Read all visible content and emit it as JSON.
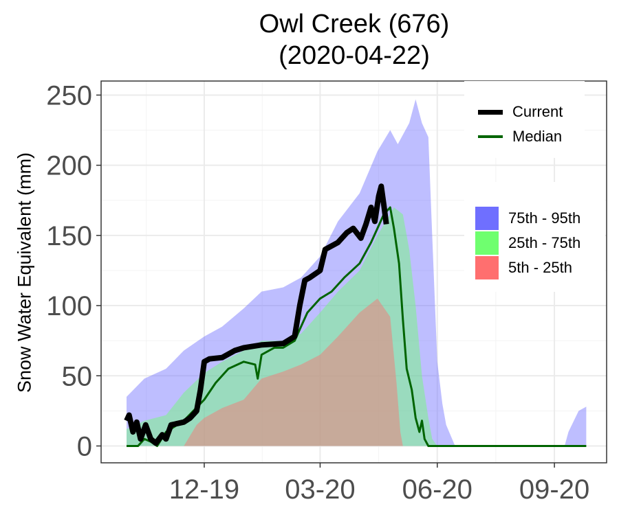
{
  "title_line1": "Owl Creek (676)",
  "title_line2": "(2020-04-22)",
  "chart_data": {
    "type": "area",
    "title": "Owl Creek (676) (2020-04-22)",
    "xlabel": "",
    "ylabel": "Snow Water Equivalent (mm)",
    "x_range": [
      "2019-10-01",
      "2020-09-30"
    ],
    "ylim": [
      -12,
      260
    ],
    "y_ticks": [
      0,
      50,
      100,
      150,
      200,
      250
    ],
    "x_ticks": [
      {
        "label": "12-19",
        "date": "2019-12-01"
      },
      {
        "label": "03-20",
        "date": "2020-03-01"
      },
      {
        "label": "06-20",
        "date": "2020-06-01"
      },
      {
        "label": "09-20",
        "date": "2020-09-01"
      }
    ],
    "grid": true,
    "legend_position": "right",
    "bands": [
      {
        "name": "75th - 95th",
        "color": "#6f6fff",
        "points": [
          [
            "2019-10-01",
            35
          ],
          [
            "2019-10-15",
            48
          ],
          [
            "2019-11-01",
            55
          ],
          [
            "2019-11-15",
            68
          ],
          [
            "2019-12-01",
            78
          ],
          [
            "2019-12-15",
            85
          ],
          [
            "2020-01-01",
            98
          ],
          [
            "2020-01-15",
            110
          ],
          [
            "2020-02-01",
            113
          ],
          [
            "2020-02-15",
            120
          ],
          [
            "2020-03-01",
            135
          ],
          [
            "2020-03-15",
            160
          ],
          [
            "2020-04-01",
            180
          ],
          [
            "2020-04-15",
            210
          ],
          [
            "2020-04-25",
            225
          ],
          [
            "2020-05-01",
            215
          ],
          [
            "2020-05-10",
            230
          ],
          [
            "2020-05-15",
            247
          ],
          [
            "2020-05-20",
            230
          ],
          [
            "2020-05-25",
            220
          ],
          [
            "2020-05-28",
            150
          ],
          [
            "2020-06-01",
            60
          ],
          [
            "2020-06-05",
            30
          ],
          [
            "2020-06-08",
            15
          ],
          [
            "2020-06-15",
            0
          ],
          [
            "2020-09-09",
            0
          ],
          [
            "2020-09-12",
            10
          ],
          [
            "2020-09-20",
            25
          ],
          [
            "2020-09-26",
            28
          ]
        ]
      },
      {
        "name": "25th - 75th",
        "color": "#6fff6f",
        "points": [
          [
            "2019-10-01",
            12
          ],
          [
            "2019-10-15",
            18
          ],
          [
            "2019-11-01",
            22
          ],
          [
            "2019-11-15",
            38
          ],
          [
            "2019-12-01",
            52
          ],
          [
            "2019-12-15",
            60
          ],
          [
            "2020-01-01",
            68
          ],
          [
            "2020-01-15",
            75
          ],
          [
            "2020-02-01",
            75
          ],
          [
            "2020-02-15",
            80
          ],
          [
            "2020-03-01",
            95
          ],
          [
            "2020-03-15",
            110
          ],
          [
            "2020-04-01",
            125
          ],
          [
            "2020-04-15",
            150
          ],
          [
            "2020-04-28",
            170
          ],
          [
            "2020-05-05",
            165
          ],
          [
            "2020-05-10",
            140
          ],
          [
            "2020-05-15",
            100
          ],
          [
            "2020-05-20",
            50
          ],
          [
            "2020-05-25",
            20
          ],
          [
            "2020-05-28",
            5
          ],
          [
            "2020-06-01",
            0
          ]
        ]
      },
      {
        "name": "5th - 25th",
        "color": "#ff6f6f",
        "points": [
          [
            "2019-11-15",
            0
          ],
          [
            "2019-11-25",
            15
          ],
          [
            "2019-12-01",
            20
          ],
          [
            "2019-12-15",
            27
          ],
          [
            "2020-01-01",
            33
          ],
          [
            "2020-01-15",
            48
          ],
          [
            "2020-02-01",
            53
          ],
          [
            "2020-02-15",
            58
          ],
          [
            "2020-03-01",
            65
          ],
          [
            "2020-03-15",
            78
          ],
          [
            "2020-04-01",
            95
          ],
          [
            "2020-04-15",
            105
          ],
          [
            "2020-04-25",
            92
          ],
          [
            "2020-04-30",
            45
          ],
          [
            "2020-05-03",
            10
          ],
          [
            "2020-05-05",
            0
          ]
        ]
      }
    ],
    "series": [
      {
        "name": "Median",
        "color": "#006400",
        "width": 3,
        "points": [
          [
            "2019-10-01",
            0
          ],
          [
            "2019-10-10",
            0
          ],
          [
            "2019-10-15",
            5
          ],
          [
            "2019-10-20",
            3
          ],
          [
            "2019-10-25",
            0
          ],
          [
            "2019-11-01",
            10
          ],
          [
            "2019-11-15",
            18
          ],
          [
            "2019-12-01",
            33
          ],
          [
            "2019-12-10",
            45
          ],
          [
            "2019-12-20",
            55
          ],
          [
            "2020-01-01",
            60
          ],
          [
            "2020-01-10",
            58
          ],
          [
            "2020-01-12",
            48
          ],
          [
            "2020-01-15",
            65
          ],
          [
            "2020-01-25",
            70
          ],
          [
            "2020-02-01",
            70
          ],
          [
            "2020-02-10",
            75
          ],
          [
            "2020-02-20",
            95
          ],
          [
            "2020-03-01",
            105
          ],
          [
            "2020-03-10",
            110
          ],
          [
            "2020-03-20",
            120
          ],
          [
            "2020-04-01",
            130
          ],
          [
            "2020-04-10",
            145
          ],
          [
            "2020-04-15",
            155
          ],
          [
            "2020-04-20",
            165
          ],
          [
            "2020-04-25",
            170
          ],
          [
            "2020-04-28",
            155
          ],
          [
            "2020-05-02",
            130
          ],
          [
            "2020-05-05",
            90
          ],
          [
            "2020-05-08",
            55
          ],
          [
            "2020-05-12",
            40
          ],
          [
            "2020-05-15",
            20
          ],
          [
            "2020-05-18",
            10
          ],
          [
            "2020-05-20",
            18
          ],
          [
            "2020-05-22",
            5
          ],
          [
            "2020-05-25",
            0
          ],
          [
            "2020-09-26",
            0
          ]
        ]
      },
      {
        "name": "Current",
        "color": "#000000",
        "width": 8,
        "points": [
          [
            "2019-10-01",
            18
          ],
          [
            "2019-10-03",
            22
          ],
          [
            "2019-10-06",
            10
          ],
          [
            "2019-10-09",
            17
          ],
          [
            "2019-10-12",
            5
          ],
          [
            "2019-10-16",
            15
          ],
          [
            "2019-10-20",
            5
          ],
          [
            "2019-10-24",
            2
          ],
          [
            "2019-10-29",
            8
          ],
          [
            "2019-11-01",
            5
          ],
          [
            "2019-11-03",
            10
          ],
          [
            "2019-11-05",
            15
          ],
          [
            "2019-11-15",
            17
          ],
          [
            "2019-11-20",
            20
          ],
          [
            "2019-11-25",
            25
          ],
          [
            "2019-11-28",
            40
          ],
          [
            "2019-12-01",
            60
          ],
          [
            "2019-12-05",
            62
          ],
          [
            "2019-12-15",
            63
          ],
          [
            "2019-12-25",
            68
          ],
          [
            "2020-01-01",
            70
          ],
          [
            "2020-01-15",
            72
          ],
          [
            "2020-02-01",
            73
          ],
          [
            "2020-02-10",
            78
          ],
          [
            "2020-02-14",
            100
          ],
          [
            "2020-02-18",
            118
          ],
          [
            "2020-02-22",
            120
          ],
          [
            "2020-03-01",
            125
          ],
          [
            "2020-03-05",
            140
          ],
          [
            "2020-03-15",
            145
          ],
          [
            "2020-03-22",
            152
          ],
          [
            "2020-03-27",
            155
          ],
          [
            "2020-04-02",
            148
          ],
          [
            "2020-04-06",
            158
          ],
          [
            "2020-04-10",
            170
          ],
          [
            "2020-04-13",
            160
          ],
          [
            "2020-04-16",
            178
          ],
          [
            "2020-04-18",
            185
          ],
          [
            "2020-04-20",
            172
          ],
          [
            "2020-04-22",
            158
          ]
        ]
      }
    ]
  },
  "legend": {
    "lines": [
      {
        "label": "Current",
        "color": "#000000"
      },
      {
        "label": "Median",
        "color": "#006400"
      }
    ],
    "fills": [
      {
        "label": "75th - 95th",
        "color": "#6f6fff"
      },
      {
        "label": "25th - 75th",
        "color": "#6fff6f"
      },
      {
        "label": "5th - 25th",
        "color": "#ff6f6f"
      }
    ]
  }
}
